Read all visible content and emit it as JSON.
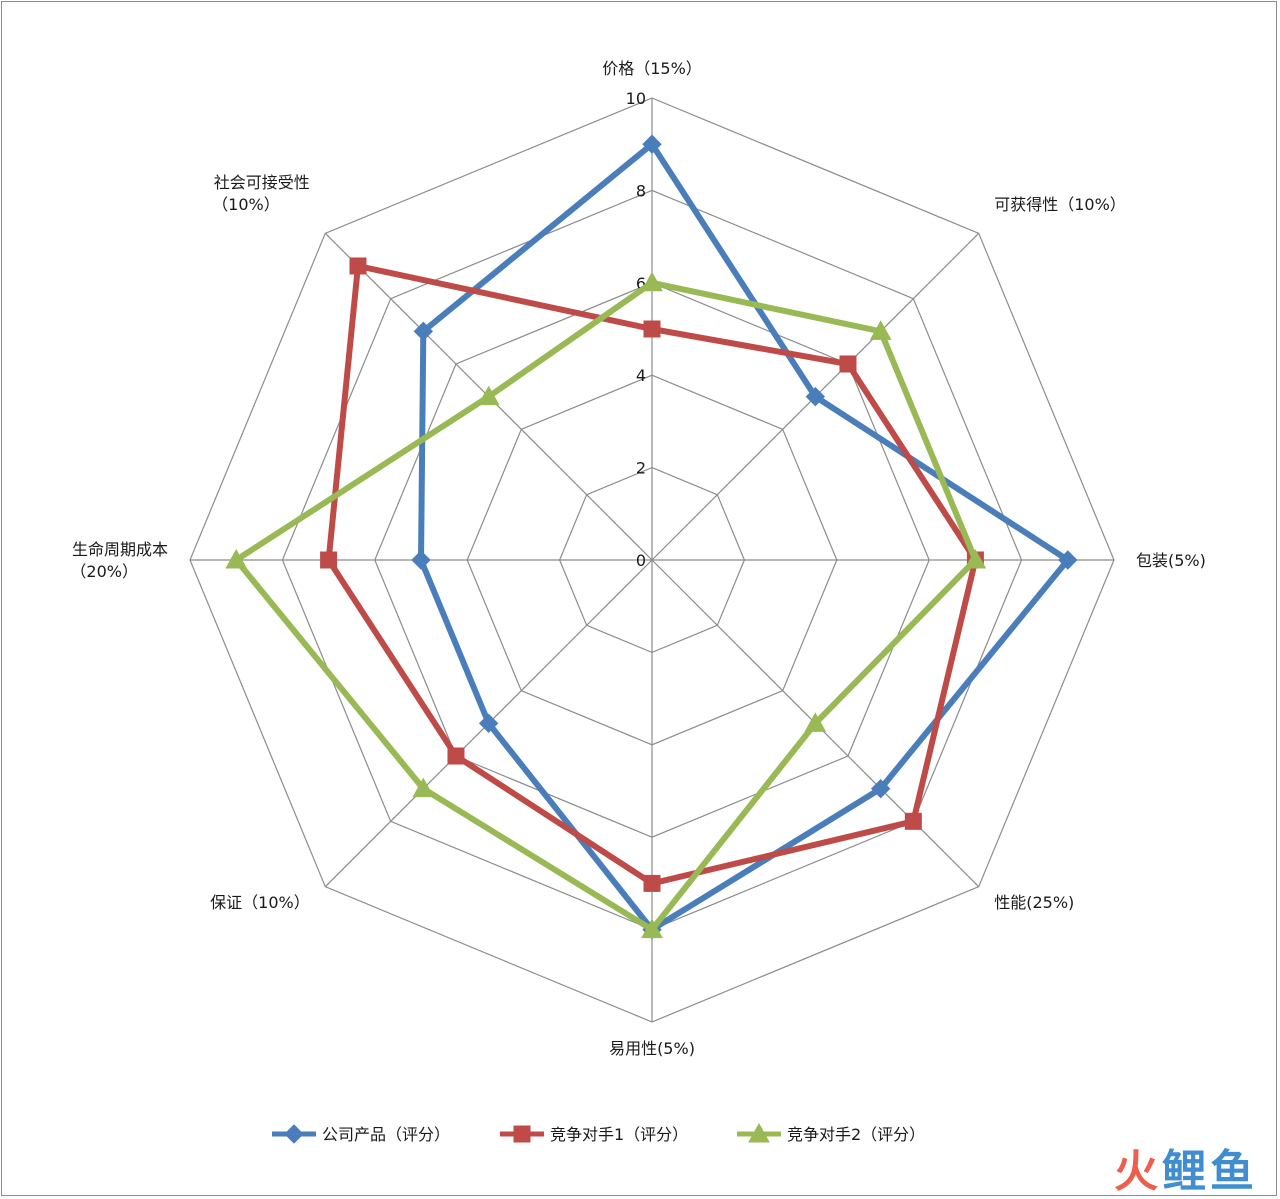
{
  "chart_data": {
    "type": "radar",
    "title": "",
    "axes": [
      [
        "价格（15%）"
      ],
      [
        "可获得性（10%）"
      ],
      [
        "包装(5%)"
      ],
      [
        "性能(25%)"
      ],
      [
        "易用性(5%)"
      ],
      [
        "保证（10%）"
      ],
      [
        "生命周期成本",
        "（20%）"
      ],
      [
        "社会可接受性",
        "（10%）"
      ]
    ],
    "ticks": [
      "0",
      "2",
      "4",
      "6",
      "8",
      "10"
    ],
    "rlim": [
      0,
      10
    ],
    "grid": true,
    "legend_position": "bottom",
    "series": [
      {
        "name": "公司产品（评分）",
        "color": "#4a7ebb",
        "marker": "diamond",
        "values": [
          9,
          5,
          9,
          7,
          8,
          5,
          5,
          7
        ]
      },
      {
        "name": "竞争对手1（评分）",
        "color": "#be4b48",
        "marker": "square",
        "values": [
          5,
          6,
          7,
          8,
          7,
          6,
          7,
          9
        ]
      },
      {
        "name": "竞争对手2（评分）",
        "color": "#98b954",
        "marker": "triangle",
        "values": [
          6,
          7,
          7,
          5,
          8,
          7,
          9,
          5
        ]
      }
    ]
  },
  "watermark": {
    "text": "火鲤鱼",
    "colors": [
      "#e8432d",
      "#1e7ac8",
      "#1e7ac8"
    ]
  }
}
